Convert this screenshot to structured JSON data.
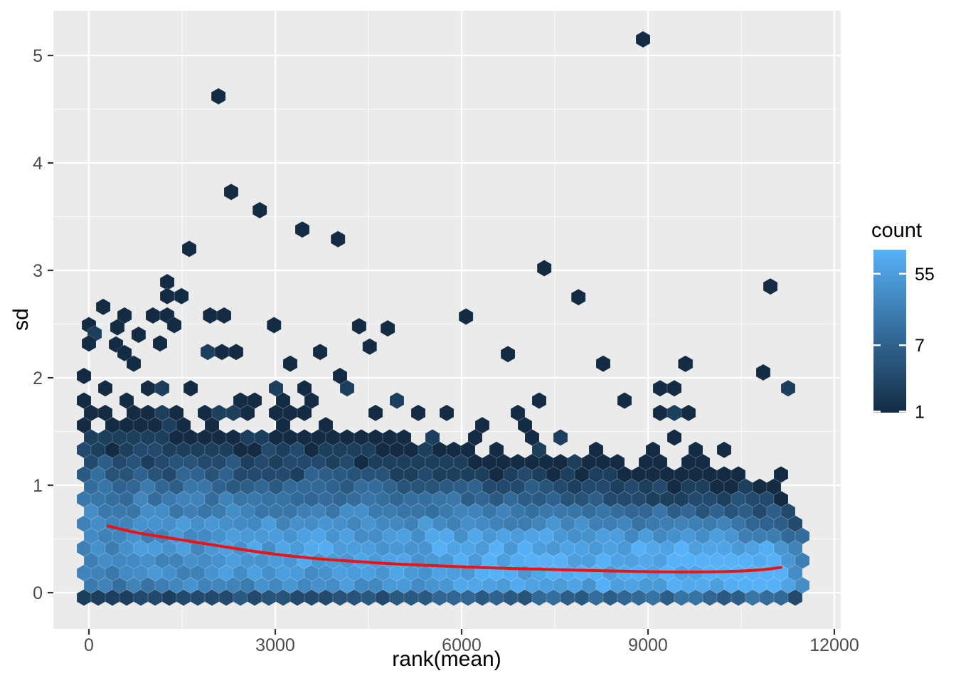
{
  "axes": {
    "x": {
      "title": "rank(mean)",
      "ticks": [
        0,
        3000,
        6000,
        9000,
        12000
      ],
      "minor_ticks": [
        1500,
        4500,
        7500,
        10500
      ],
      "lim": [
        -573,
        12103
      ]
    },
    "y": {
      "title": "sd",
      "ticks": [
        0,
        1,
        2,
        3,
        4,
        5
      ],
      "minor_ticks": [
        0.5,
        1.5,
        2.5,
        3.5,
        4.5
      ],
      "lim": [
        -0.34,
        5.42
      ]
    },
    "tick_mark_color": "#333333",
    "tick_label_color": "#4D4D4D",
    "title_color": "#000000"
  },
  "panel": {
    "bg": "#EBEBEB",
    "grid_color": "#FFFFFF"
  },
  "legend": {
    "title": "count",
    "breaks": [
      55,
      7,
      1
    ],
    "min_count": 1,
    "max_count": 110,
    "color_low": "#132B43",
    "color_high": "#56B1F7"
  },
  "chart_data": {
    "type": "hexbin",
    "title": "",
    "xlabel": "rank(mean)",
    "ylabel": "sd",
    "xlim": [
      -573,
      12103
    ],
    "ylim": [
      -0.34,
      5.42
    ],
    "x_ticks": [
      0,
      3000,
      6000,
      9000,
      12000
    ],
    "y_ticks": [
      0,
      1,
      2,
      3,
      4,
      5
    ],
    "grid": "on",
    "legend_position": "right",
    "count_scale": "log",
    "count_breaks": [
      55,
      7,
      1
    ],
    "count_max": 110,
    "fill_low": "#132B43",
    "fill_high": "#56B1F7",
    "x_data_max": 11500,
    "hex_binwidth_x": 229,
    "hex_binwidth_y": 0.153,
    "density_model": {
      "seed": 11,
      "rows": 20,
      "row0_sd": -0.046,
      "row_dsd": 0.1146,
      "mode_left": 0.47,
      "mode_drop": 0.29,
      "mode_pow": 0.8,
      "sigma_left": 0.33,
      "sigma_drop": 0.16,
      "amp_left": 26,
      "amp_gain": 80,
      "amp_pow": 1.2,
      "mid_frac": 0.16,
      "mid_sigma_mult": 1.8,
      "tail_amp": 1.1,
      "tail_tau": 0.55,
      "tail_right_damp": 0.2,
      "row0_damp": 0.18,
      "right_edge_start": 11100,
      "right_edge_tau": 300,
      "noise_log_sd": 0.55
    },
    "outliers": [
      [
        8920,
        5.15
      ],
      [
        2085,
        4.62
      ],
      [
        2290,
        3.73
      ],
      [
        2750,
        3.56
      ],
      [
        3435,
        3.38
      ],
      [
        4010,
        3.29
      ],
      [
        1615,
        3.2
      ],
      [
        7330,
        3.02
      ],
      [
        1260,
        2.89
      ],
      [
        10970,
        2.85
      ],
      [
        1260,
        2.76
      ],
      [
        1490,
        2.76
      ],
      [
        7880,
        2.75
      ],
      [
        230,
        2.66
      ],
      [
        573,
        2.58
      ],
      [
        1030,
        2.58
      ],
      [
        1260,
        2.58
      ],
      [
        1950,
        2.58
      ],
      [
        2176,
        2.58
      ],
      [
        6070,
        2.57
      ],
      [
        458,
        2.47
      ],
      [
        1374,
        2.49
      ],
      [
        2980,
        2.49
      ],
      [
        0,
        2.49
      ],
      [
        4350,
        2.48
      ],
      [
        4810,
        2.46
      ],
      [
        92,
        2.41,
        2
      ],
      [
        800,
        2.4
      ],
      [
        0,
        2.32
      ],
      [
        1145,
        2.32
      ],
      [
        435,
        2.31
      ],
      [
        4520,
        2.29
      ],
      [
        573,
        2.23
      ],
      [
        1912,
        2.24,
        2
      ],
      [
        2141,
        2.24
      ],
      [
        2370,
        2.24
      ],
      [
        3722,
        2.24
      ],
      [
        6745,
        2.22
      ],
      [
        9608,
        2.13
      ],
      [
        10855,
        2.05
      ],
      [
        9600,
        2.13
      ]
    ],
    "smooth_line": {
      "color": "#EC1313",
      "width": 4,
      "points": [
        [
          309,
          0.62
        ],
        [
          800,
          0.555
        ],
        [
          1500,
          0.49
        ],
        [
          2200,
          0.425
        ],
        [
          2900,
          0.365
        ],
        [
          3600,
          0.32
        ],
        [
          4300,
          0.29
        ],
        [
          5000,
          0.265
        ],
        [
          5800,
          0.245
        ],
        [
          6800,
          0.225
        ],
        [
          7800,
          0.21
        ],
        [
          8800,
          0.197
        ],
        [
          9600,
          0.192
        ],
        [
          10300,
          0.197
        ],
        [
          10800,
          0.212
        ],
        [
          11140,
          0.235
        ]
      ]
    }
  }
}
